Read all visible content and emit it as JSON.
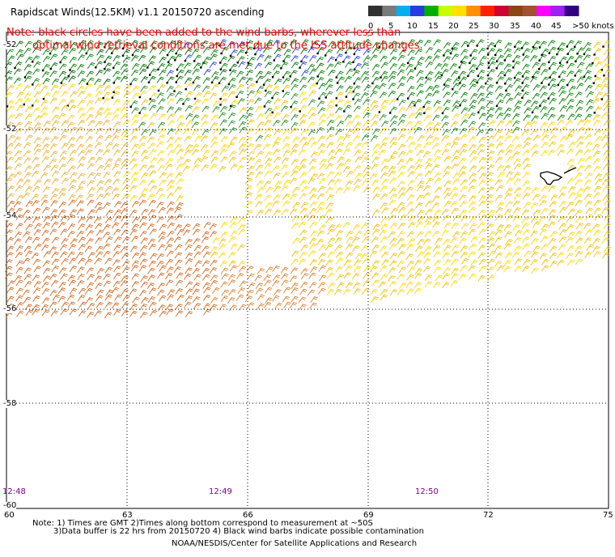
{
  "header": {
    "title": "Rapidscat Winds(12.5KM) v1.1 20150720 ascending",
    "note_line1": "Note: black circles have been added to the wind barbs, wherever less than",
    "note_line2": "optimal wind retrieval conditions are met due to the ISS attitude changes."
  },
  "colorbar": {
    "labels": [
      "0",
      "5",
      "10",
      "15",
      "20",
      "25",
      "30",
      "35",
      "40",
      "45",
      ">50 knots"
    ],
    "colors": [
      "#303030",
      "#7a7a7a",
      "#00b0f0",
      "#2a3ce0",
      "#00b000",
      "#c8ff00",
      "#ffe000",
      "#ff9000",
      "#ff2000",
      "#d00030",
      "#8b4513",
      "#a0522d",
      "#ff00ff",
      "#a020f0",
      "#300080"
    ]
  },
  "map": {
    "lat_labels": [
      "-52",
      "-54",
      "-56",
      "-58",
      "-60"
    ],
    "lon_labels": [
      "60",
      "63",
      "66",
      "69",
      "72",
      "75"
    ],
    "time_labels": [
      "12:48",
      "12:49",
      "12:50"
    ],
    "lon_range": [
      60,
      75
    ],
    "lat_range": [
      -60,
      -50.3
    ]
  },
  "footer": {
    "footnote_line1": "Note: 1) Times are GMT 2)Times along bottom correspond to measurement at ~50S",
    "footnote_line2": "3)Data buffer is 22 hrs from 20150720 4) Black wind barbs indicate possible contamination",
    "credit": "NOAA/NESDIS/Center for Satellite Applications and Research"
  }
}
